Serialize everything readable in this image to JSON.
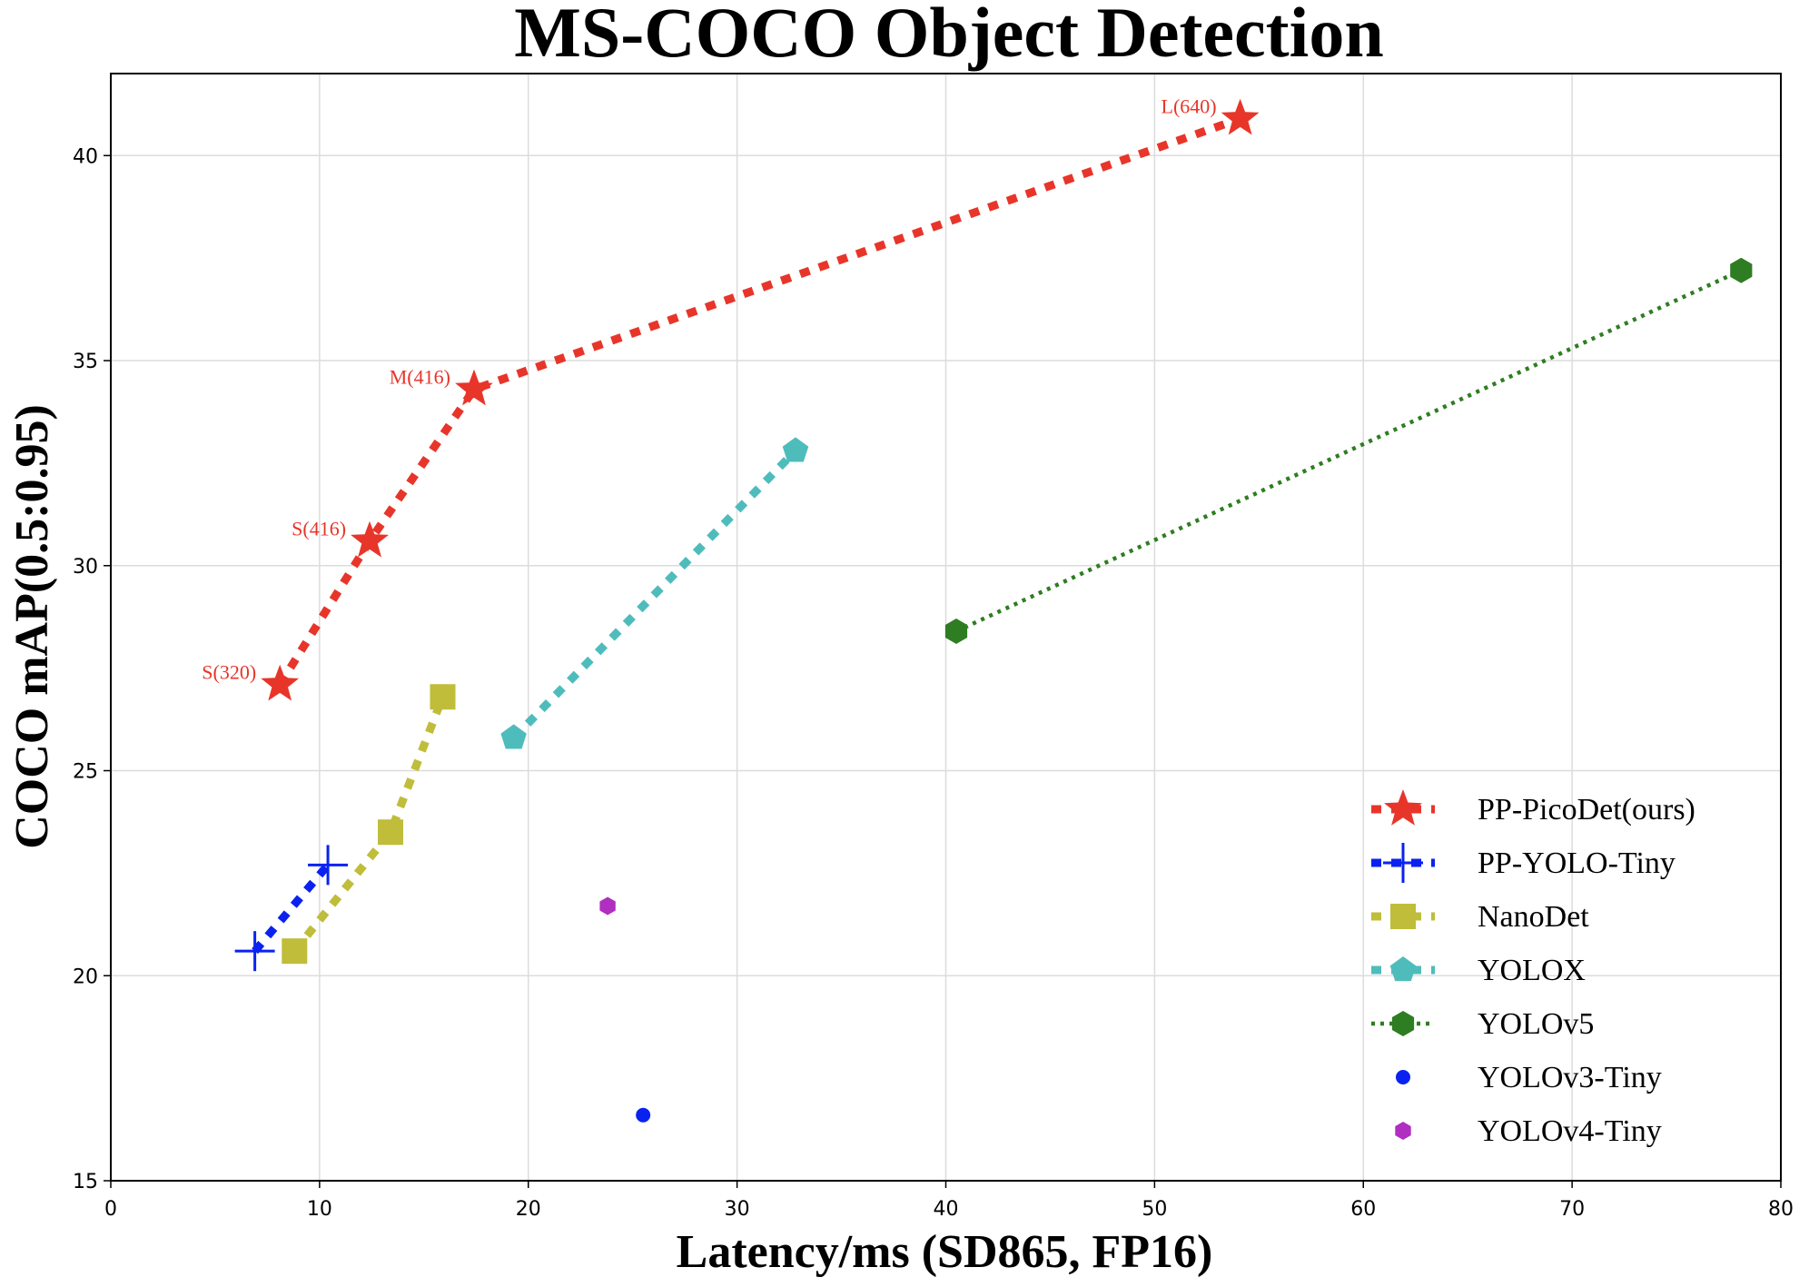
{
  "chart_data": {
    "type": "line",
    "title": "MS-COCO Object Detection",
    "xlabel": "Latency/ms (SD865, FP16)",
    "ylabel": "COCO mAP(0.5:0.95)",
    "xlim": [
      0,
      80
    ],
    "ylim": [
      15,
      42
    ],
    "xticks": [
      0,
      10,
      20,
      30,
      40,
      50,
      60,
      70,
      80
    ],
    "yticks": [
      15,
      20,
      25,
      30,
      35,
      40
    ],
    "grid": true,
    "legend_position": "bottom-right",
    "series": [
      {
        "name": "PP-PicoDet(ours)",
        "color": "#e8352a",
        "marker": "star",
        "line": "dashed-thick",
        "points": [
          {
            "x": 8.1,
            "y": 27.1,
            "label": "S(320)"
          },
          {
            "x": 12.4,
            "y": 30.6,
            "label": "S(416)"
          },
          {
            "x": 17.4,
            "y": 34.3,
            "label": "M(416)"
          },
          {
            "x": 54.1,
            "y": 40.9,
            "label": "L(640)"
          }
        ]
      },
      {
        "name": "PP-YOLO-Tiny",
        "color": "#0a22f0",
        "marker": "plus",
        "line": "dashed-thick",
        "points": [
          {
            "x": 6.9,
            "y": 20.6
          },
          {
            "x": 10.4,
            "y": 22.7
          }
        ]
      },
      {
        "name": "NanoDet",
        "color": "#bfbd3a",
        "marker": "square",
        "line": "dashed-thick",
        "points": [
          {
            "x": 8.8,
            "y": 20.6
          },
          {
            "x": 13.4,
            "y": 23.5
          },
          {
            "x": 15.9,
            "y": 26.8
          }
        ]
      },
      {
        "name": "YOLOX",
        "color": "#4fbcbc",
        "marker": "pentagon",
        "line": "dashed-thick",
        "points": [
          {
            "x": 19.3,
            "y": 25.8
          },
          {
            "x": 32.8,
            "y": 32.8
          }
        ]
      },
      {
        "name": "YOLOv5",
        "color": "#2f7d22",
        "marker": "hexagon",
        "line": "dotted",
        "points": [
          {
            "x": 40.5,
            "y": 28.4
          },
          {
            "x": 78.1,
            "y": 37.2
          }
        ]
      },
      {
        "name": "YOLOv3-Tiny",
        "color": "#0a22f0",
        "marker": "circle",
        "line": "none",
        "points": [
          {
            "x": 25.5,
            "y": 16.6
          }
        ]
      },
      {
        "name": "YOLOv4-Tiny",
        "color": "#b02fc0",
        "marker": "hexagon-small",
        "line": "none",
        "points": [
          {
            "x": 23.8,
            "y": 21.7
          }
        ]
      }
    ]
  }
}
